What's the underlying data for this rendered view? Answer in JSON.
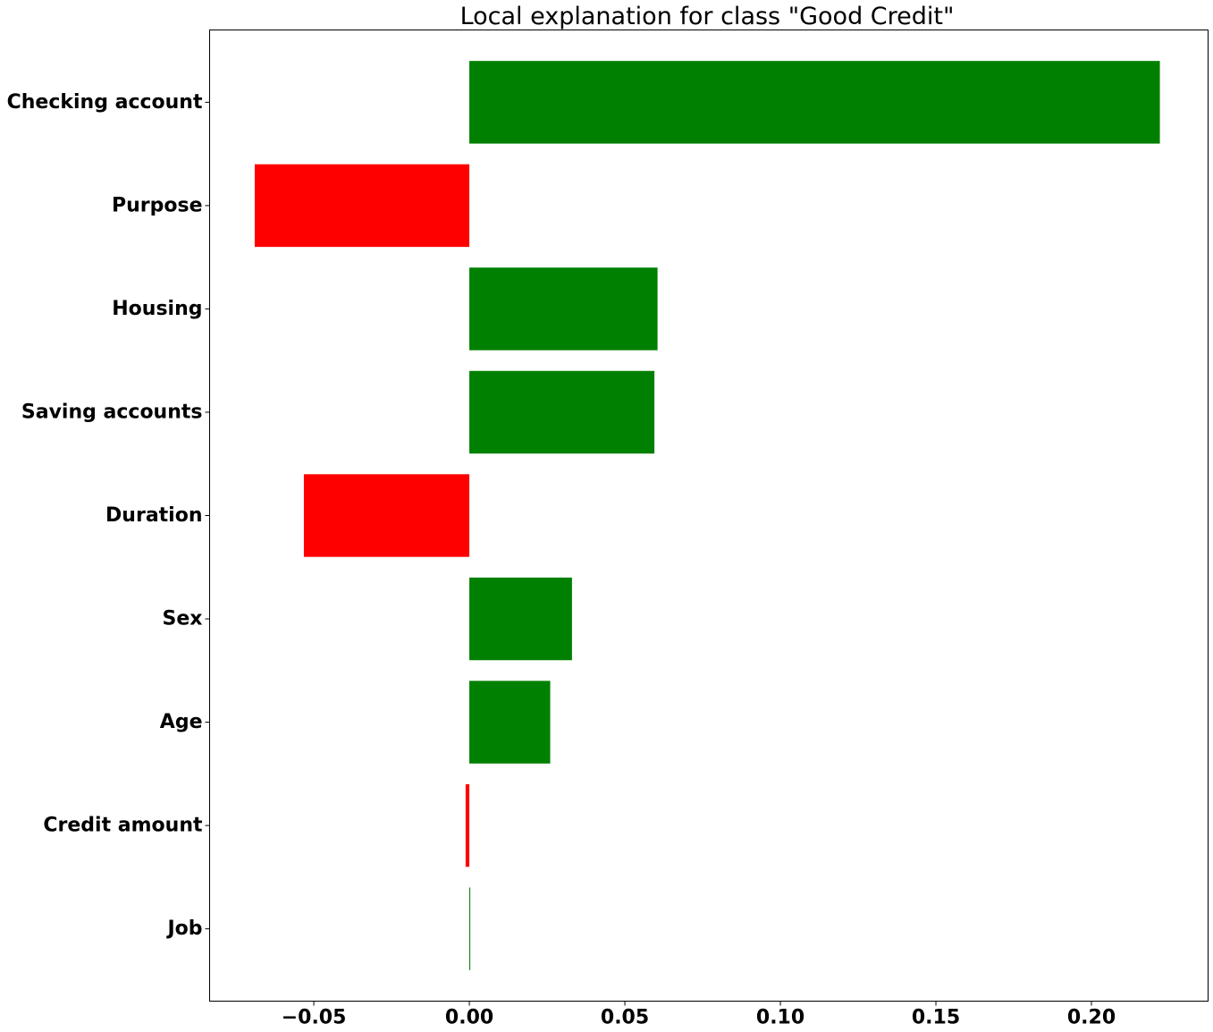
{
  "chart_data": {
    "type": "bar",
    "orientation": "horizontal",
    "title": "Local explanation for class \"Good Credit\"",
    "xlabel": "",
    "ylabel": "",
    "categories": [
      "Checking account",
      "Purpose",
      "Housing",
      "Saving accounts",
      "Duration",
      "Sex",
      "Age",
      "Credit amount",
      "Job"
    ],
    "values": [
      0.222,
      -0.069,
      0.0605,
      0.0595,
      -0.0532,
      0.033,
      0.026,
      -0.0012,
      0.0003
    ],
    "positive_color": "#008000",
    "negative_color": "#ff0000",
    "xlim": [
      -0.0835,
      0.2375
    ],
    "xticks": [
      -0.05,
      0.0,
      0.05,
      0.1,
      0.15,
      0.2
    ],
    "xtick_labels": [
      "−0.05",
      "0.00",
      "0.05",
      "0.10",
      "0.15",
      "0.20"
    ],
    "grid": false,
    "legend": "none"
  }
}
